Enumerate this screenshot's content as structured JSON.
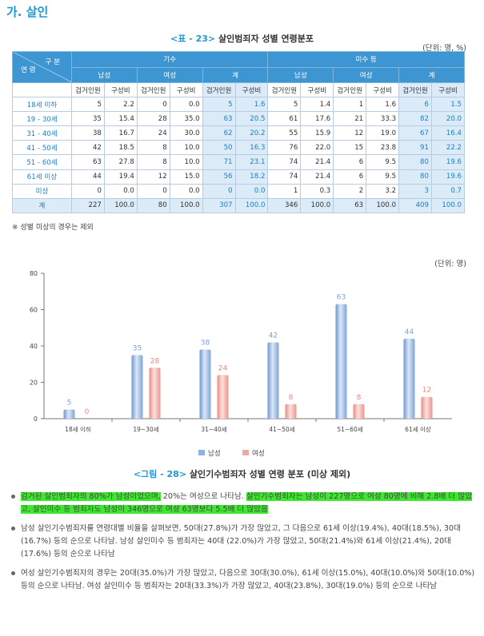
{
  "section": {
    "title": "가. 살인"
  },
  "table": {
    "caption_num": "<표 - 23>",
    "caption_text": "살인범죄자 성별 연령분포",
    "unit": "(단위: 명, %)",
    "corner_top": "구 분",
    "corner_bottom": "연 령",
    "group1": "기수",
    "group2": "미수 등",
    "sub_male": "남성",
    "sub_female": "여성",
    "sub_total": "계",
    "col_count": "검거인원",
    "col_ratio": "구성비",
    "rows": [
      {
        "label": "18세 이하",
        "v": [
          "5",
          "2.2",
          "0",
          "0.0",
          "5",
          "1.6",
          "5",
          "1.4",
          "1",
          "1.6",
          "6",
          "1.5"
        ]
      },
      {
        "label": "19 - 30세",
        "v": [
          "35",
          "15.4",
          "28",
          "35.0",
          "63",
          "20.5",
          "61",
          "17.6",
          "21",
          "33.3",
          "82",
          "20.0"
        ]
      },
      {
        "label": "31 - 40세",
        "v": [
          "38",
          "16.7",
          "24",
          "30.0",
          "62",
          "20.2",
          "55",
          "15.9",
          "12",
          "19.0",
          "67",
          "16.4"
        ]
      },
      {
        "label": "41 - 50세",
        "v": [
          "42",
          "18.5",
          "8",
          "10.0",
          "50",
          "16.3",
          "76",
          "22.0",
          "15",
          "23.8",
          "91",
          "22.2"
        ]
      },
      {
        "label": "51 - 60세",
        "v": [
          "63",
          "27.8",
          "8",
          "10.0",
          "71",
          "23.1",
          "74",
          "21.4",
          "6",
          "9.5",
          "80",
          "19.6"
        ]
      },
      {
        "label": "61세 이상",
        "v": [
          "44",
          "19.4",
          "12",
          "15.0",
          "56",
          "18.2",
          "74",
          "21.4",
          "6",
          "9.5",
          "80",
          "19.6"
        ]
      },
      {
        "label": "미상",
        "v": [
          "0",
          "0.0",
          "0",
          "0.0",
          "0",
          "0.0",
          "1",
          "0.3",
          "2",
          "3.2",
          "3",
          "0.7"
        ]
      },
      {
        "label": "계",
        "v": [
          "227",
          "100.0",
          "80",
          "100.0",
          "307",
          "100.0",
          "346",
          "100.0",
          "63",
          "100.0",
          "409",
          "100.0"
        ]
      }
    ],
    "note": "※ 성별 미상의 경우는 제외"
  },
  "chart_unit": "(단위: 명)",
  "chart_data": {
    "type": "bar",
    "categories": [
      "18세 이하",
      "19~30세",
      "31~40세",
      "41~50세",
      "51~60세",
      "61세 이상"
    ],
    "series": [
      {
        "name": "남성",
        "values": [
          5,
          35,
          38,
          42,
          63,
          44
        ]
      },
      {
        "name": "여성",
        "values": [
          0,
          28,
          24,
          8,
          8,
          12
        ]
      }
    ],
    "ylim": [
      0,
      80
    ],
    "yticks": [
      0,
      20,
      40,
      60,
      80
    ],
    "legend": "bottom",
    "colors": {
      "male": "#8fb3e0",
      "female": "#f0a8a2",
      "male_label": "#7aa3d6",
      "female_label": "#e8867d"
    }
  },
  "figure": {
    "caption_num": "<그림 - 28>",
    "caption_text": "살인기수범죄자 성별 연령 분포 (미상 제외)"
  },
  "bullets": [
    {
      "hl1": "검거된 살인범죄자의 80%가 남성이었으며,",
      "mid": " 20%는 여성으로 나타남. ",
      "hl2": "살인기수범죄자는 남성이 227명으로 여성 80명에 비해 2.8배 더 많았고, 살인미수 등 범죄자도 남성이 346명으로 여성 63명보다 5.5배 더 많았음"
    },
    {
      "text": "남성 살인기수범죄자를 연령대별 비율을 살펴보면, 50대(27.8%)가 가장 많았고, 그 다음으로 61세 이상(19.4%), 40대(18.5%), 30대(16.7%) 등의 순으로 나타남. 남성 살인미수 등 범죄자는 40대 (22.0%)가 가장 많았고, 50대(21.4%)와 61세 이상(21.4%), 20대(17.6%) 등의 순으로 나타남"
    },
    {
      "text": "여성 살인기수범죄자의 경우는 20대(35.0%)가 가장 많았고, 다음으로 30대(30.0%), 61세 이상(15.0%), 40대(10.0%)와 50대(10.0%) 등의 순으로 나타남. 여성 살인미수 등 범죄자는 20대(33.3%)가 가장 많았고, 40대(23.8%), 30대(19.0%) 등의 순으로 나타남"
    }
  ]
}
